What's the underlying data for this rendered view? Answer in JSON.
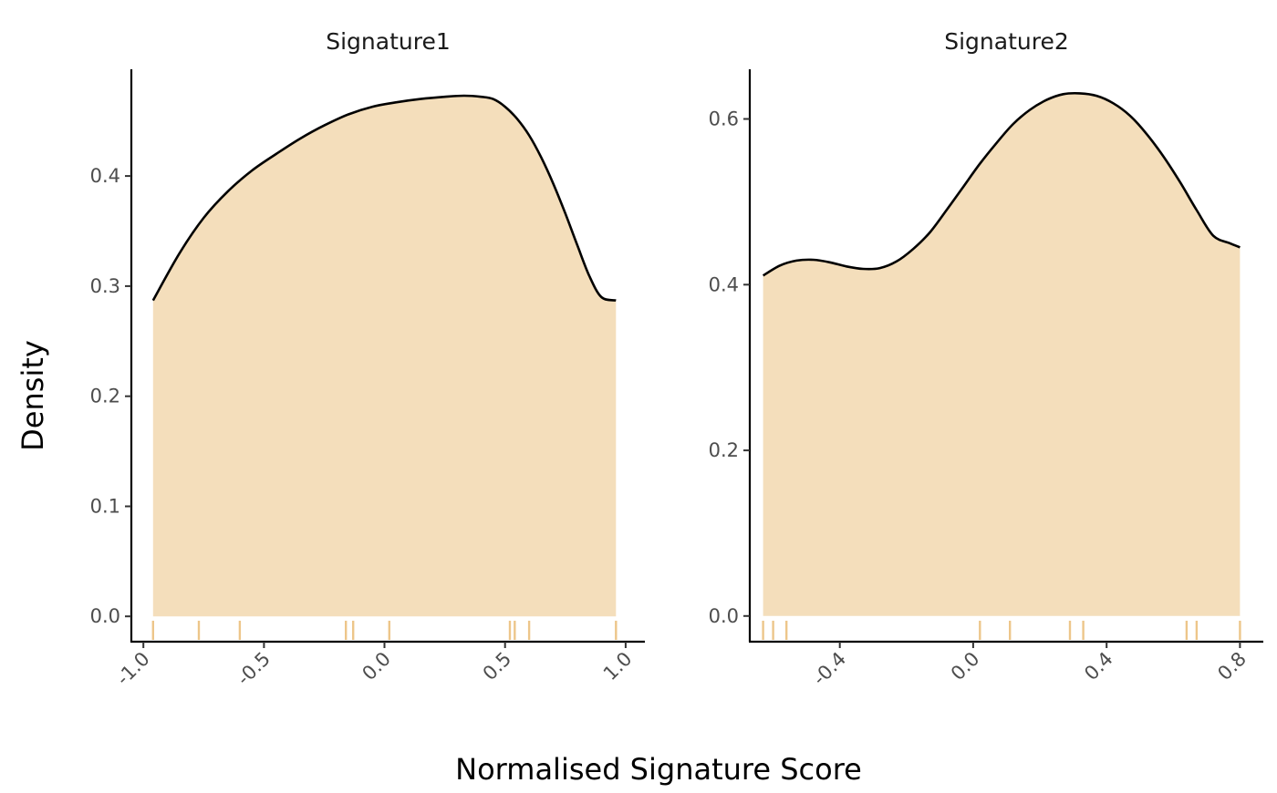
{
  "chart_data": {
    "type": "area",
    "xlabel": "Normalised Signature Score",
    "ylabel": "Density",
    "fill_color": "#F4DEBB",
    "rug_color": "#EDC68A",
    "line_color": "#000000",
    "panels": [
      {
        "title": "Signature1",
        "xlim": [
          -1.05,
          1.08
        ],
        "ylim": [
          -0.023,
          0.497
        ],
        "x_ticks": [
          -1.0,
          -0.5,
          0.0,
          0.5,
          1.0
        ],
        "x_tick_labels": [
          "-1.0",
          "-0.5",
          "0.0",
          "0.5",
          "1.0"
        ],
        "y_ticks": [
          0.0,
          0.1,
          0.2,
          0.3,
          0.4
        ],
        "y_tick_labels": [
          "0.0",
          "0.1",
          "0.2",
          "0.3",
          "0.4"
        ],
        "x": [
          -0.96,
          -0.85,
          -0.75,
          -0.65,
          -0.55,
          -0.45,
          -0.35,
          -0.25,
          -0.15,
          -0.05,
          0.05,
          0.15,
          0.25,
          0.33,
          0.4,
          0.45,
          0.5,
          0.55,
          0.6,
          0.65,
          0.7,
          0.75,
          0.8,
          0.85,
          0.9,
          0.96
        ],
        "y": [
          0.287,
          0.33,
          0.362,
          0.386,
          0.405,
          0.42,
          0.434,
          0.446,
          0.456,
          0.463,
          0.467,
          0.47,
          0.472,
          0.473,
          0.472,
          0.47,
          0.463,
          0.452,
          0.437,
          0.417,
          0.393,
          0.366,
          0.337,
          0.309,
          0.29,
          0.287
        ],
        "rug": [
          -0.96,
          -0.77,
          -0.6,
          -0.16,
          -0.13,
          0.02,
          0.52,
          0.54,
          0.6,
          0.96
        ]
      },
      {
        "title": "Signature2",
        "xlim": [
          -0.67,
          0.87
        ],
        "ylim": [
          -0.031,
          0.66
        ],
        "x_ticks": [
          -0.4,
          0.0,
          0.4,
          0.8
        ],
        "x_tick_labels": [
          "-0.4",
          "0.0",
          "0.4",
          "0.8"
        ],
        "y_ticks": [
          0.0,
          0.2,
          0.4,
          0.6
        ],
        "y_tick_labels": [
          "0.0",
          "0.2",
          "0.4",
          "0.6"
        ],
        "x": [
          -0.63,
          -0.58,
          -0.53,
          -0.48,
          -0.43,
          -0.38,
          -0.33,
          -0.28,
          -0.23,
          -0.18,
          -0.13,
          -0.08,
          -0.03,
          0.02,
          0.07,
          0.12,
          0.17,
          0.22,
          0.27,
          0.32,
          0.37,
          0.42,
          0.47,
          0.52,
          0.57,
          0.62,
          0.67,
          0.72,
          0.77,
          0.8
        ],
        "y": [
          0.411,
          0.423,
          0.429,
          0.43,
          0.427,
          0.422,
          0.419,
          0.42,
          0.428,
          0.443,
          0.463,
          0.49,
          0.518,
          0.546,
          0.571,
          0.594,
          0.611,
          0.623,
          0.63,
          0.631,
          0.628,
          0.619,
          0.604,
          0.582,
          0.555,
          0.524,
          0.49,
          0.459,
          0.45,
          0.445
        ],
        "rug": [
          -0.63,
          -0.6,
          -0.56,
          0.02,
          0.11,
          0.29,
          0.33,
          0.64,
          0.67,
          0.8
        ]
      }
    ]
  }
}
